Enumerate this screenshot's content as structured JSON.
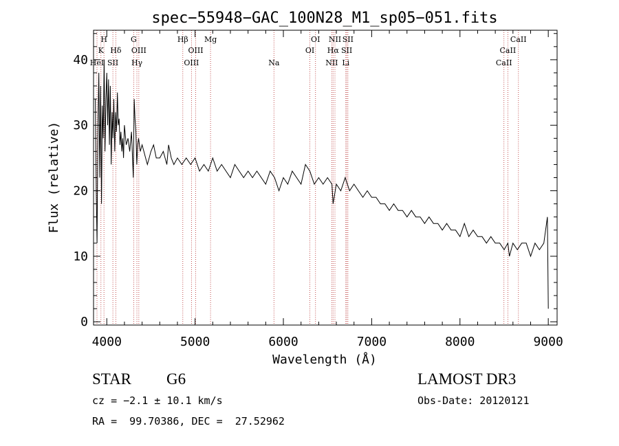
{
  "chart_data": {
    "type": "line",
    "title": "spec−55948−GAC_100N28_M1_sp05−051.fits",
    "xlabel": "Wavelength (Å)",
    "ylabel": "Flux (relative)",
    "xlim": [
      3850,
      9100
    ],
    "ylim": [
      -0.5,
      44.5
    ],
    "xticks": [
      4000,
      5000,
      6000,
      7000,
      8000,
      9000
    ],
    "yticks": [
      0,
      10,
      20,
      30,
      40
    ],
    "series": [
      {
        "name": "flux",
        "x": [
          3870,
          3880,
          3890,
          3900,
          3910,
          3920,
          3930,
          3940,
          3950,
          3960,
          3970,
          3980,
          3990,
          4000,
          4010,
          4020,
          4030,
          4040,
          4050,
          4060,
          4070,
          4080,
          4090,
          4100,
          4110,
          4120,
          4130,
          4140,
          4150,
          4160,
          4170,
          4180,
          4190,
          4200,
          4220,
          4240,
          4260,
          4280,
          4300,
          4310,
          4320,
          4330,
          4340,
          4350,
          4360,
          4380,
          4400,
          4420,
          4440,
          4460,
          4480,
          4500,
          4530,
          4560,
          4600,
          4640,
          4680,
          4700,
          4730,
          4760,
          4800,
          4850,
          4900,
          4950,
          5000,
          5050,
          5100,
          5150,
          5200,
          5250,
          5300,
          5350,
          5400,
          5450,
          5500,
          5550,
          5600,
          5650,
          5700,
          5750,
          5800,
          5850,
          5900,
          5950,
          6000,
          6050,
          6100,
          6150,
          6200,
          6250,
          6300,
          6350,
          6400,
          6450,
          6500,
          6550,
          6563,
          6600,
          6650,
          6700,
          6750,
          6800,
          6850,
          6900,
          6950,
          7000,
          7050,
          7100,
          7150,
          7200,
          7250,
          7300,
          7350,
          7400,
          7450,
          7500,
          7550,
          7600,
          7650,
          7700,
          7750,
          7800,
          7850,
          7900,
          7950,
          8000,
          8050,
          8100,
          8150,
          8200,
          8250,
          8300,
          8350,
          8400,
          8450,
          8500,
          8542,
          8560,
          8600,
          8650,
          8700,
          8750,
          8800,
          8850,
          8900,
          8950,
          8990,
          9000
        ],
        "y": [
          34,
          20,
          12,
          30,
          38,
          22,
          36,
          18,
          33,
          28,
          40,
          26,
          34,
          38,
          30,
          37,
          27,
          36,
          24,
          32,
          28,
          34,
          26,
          32,
          29,
          35,
          30,
          31,
          27,
          29,
          26,
          28,
          25,
          30,
          27,
          28,
          26,
          29,
          22,
          34,
          31,
          29,
          24,
          27,
          28,
          26,
          27,
          26,
          25,
          24,
          25,
          26,
          27,
          25,
          25,
          26,
          24,
          27,
          25,
          24,
          25,
          24,
          25,
          24,
          25,
          23,
          24,
          23,
          25,
          23,
          24,
          23,
          22,
          24,
          23,
          22,
          23,
          22,
          23,
          22,
          21,
          23,
          22,
          20,
          22,
          21,
          23,
          22,
          21,
          24,
          23,
          21,
          22,
          21,
          22,
          21,
          18,
          21,
          20,
          22,
          20,
          21,
          20,
          19,
          20,
          19,
          19,
          18,
          18,
          17,
          18,
          17,
          17,
          16,
          17,
          16,
          16,
          15,
          16,
          15,
          15,
          14,
          15,
          14,
          14,
          13,
          15,
          13,
          14,
          13,
          13,
          12,
          13,
          12,
          12,
          11,
          12,
          10,
          12,
          11,
          12,
          12,
          10,
          12,
          11,
          12,
          16,
          2
        ]
      }
    ],
    "spectral_lines": [
      {
        "label": "H",
        "x": 3968,
        "row": 0
      },
      {
        "label": "K",
        "x": 3934,
        "row": 1
      },
      {
        "label": "Hδ",
        "x": 4102,
        "row": 1
      },
      {
        "label": "HeI",
        "x": 3889,
        "row": 2
      },
      {
        "label": "SII",
        "x": 4069,
        "row": 2
      },
      {
        "label": "G",
        "x": 4305,
        "row": 0
      },
      {
        "label": "OIII",
        "x": 4363,
        "row": 1
      },
      {
        "label": "Hγ",
        "x": 4341,
        "row": 2
      },
      {
        "label": "Hβ",
        "x": 4861,
        "row": 0
      },
      {
        "label": "OIII",
        "x": 5007,
        "row": 1
      },
      {
        "label": "OIII",
        "x": 4959,
        "row": 2
      },
      {
        "label": "Mg",
        "x": 5175,
        "row": 0
      },
      {
        "label": "Na",
        "x": 5893,
        "row": 2
      },
      {
        "label": "OI",
        "x": 6364,
        "row": 0
      },
      {
        "label": "OI",
        "x": 6300,
        "row": 1
      },
      {
        "label": "NII",
        "x": 6584,
        "row": 0
      },
      {
        "label": "SII",
        "x": 6731,
        "row": 0
      },
      {
        "label": "Hα",
        "x": 6563,
        "row": 1
      },
      {
        "label": "SII",
        "x": 6717,
        "row": 1
      },
      {
        "label": "NII",
        "x": 6548,
        "row": 2
      },
      {
        "label": "Li",
        "x": 6707,
        "row": 2
      },
      {
        "label": "CaII",
        "x": 8662,
        "row": 0
      },
      {
        "label": "CaII",
        "x": 8542,
        "row": 1
      },
      {
        "label": "CaII",
        "x": 8498,
        "row": 2
      }
    ]
  },
  "info": {
    "object_class": "STAR",
    "subclass": "G6",
    "survey": "LAMOST DR3",
    "redshift": "cz = −2.1 ± 10.1 km/s",
    "obs_date": "Obs-Date: 20120121",
    "coords": "RA =  99.70386, DEC =  27.52962"
  },
  "colors": {
    "line": "#000000",
    "marker": "#b22222",
    "text": "#000000"
  }
}
